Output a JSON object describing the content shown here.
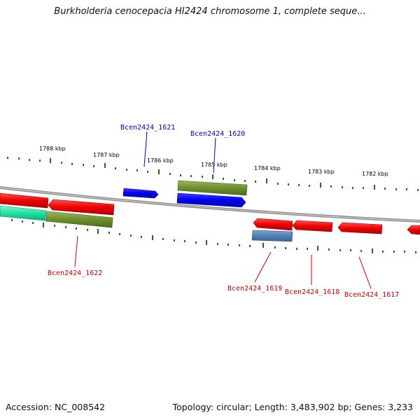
{
  "header": {
    "title": "Burkholderia cenocepacia HI2424 chromosome 1, complete seque..."
  },
  "footer": {
    "accession": "Accession: NC_008542",
    "topology": "Topology: circular; Length: 3,483,902 bp; Genes: 3,233"
  },
  "colors": {
    "plus_label": "#0000cc",
    "minus_label": "#cc0000",
    "backbone": "#888888",
    "tick": "#1f6f1f"
  },
  "scale_labels": [
    "1788 kbp",
    "1787 kbp",
    "1786 kbp",
    "1785 kbp",
    "1784 kbp",
    "1783 kbp",
    "1782 kbp"
  ],
  "gene_labels_plus": [
    "Bcen2424_1621",
    "Bcen2424_1620"
  ],
  "gene_labels_minus": [
    "Bcen2424_1622",
    "Bcen2424_1619",
    "Bcen2424_1618",
    "Bcen2424_1617"
  ]
}
